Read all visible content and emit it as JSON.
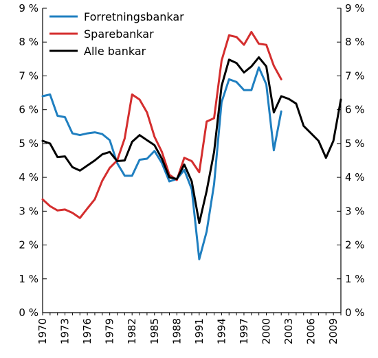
{
  "chart_data": {
    "type": "line",
    "title": "",
    "xlabel": "",
    "ylabel": "",
    "xlim": [
      1970,
      2010
    ],
    "ylim": [
      0,
      9
    ],
    "x_ticks": [
      1970,
      1973,
      1976,
      1979,
      1982,
      1985,
      1988,
      1991,
      1994,
      1997,
      2000,
      2003,
      2006,
      2009
    ],
    "x_tick_labels": [
      "1970",
      "1973",
      "1976",
      "1979",
      "1982",
      "1985",
      "1988",
      "1991",
      "1994",
      "1997",
      "2000",
      "2003",
      "2006",
      "2009"
    ],
    "y_ticks": [
      0,
      1,
      2,
      3,
      4,
      5,
      6,
      7,
      8,
      9
    ],
    "y_tick_labels": [
      "0 %",
      "1 %",
      "2 %",
      "3 %",
      "4 %",
      "5 %",
      "6 %",
      "7 %",
      "8 %",
      "9 %"
    ],
    "grid": false,
    "legend_position": "top-left",
    "series": [
      {
        "name": "Forretningsbankar",
        "color": "#1f7fc0",
        "x": [
          1970,
          1971,
          1972,
          1973,
          1974,
          1975,
          1976,
          1977,
          1978,
          1979,
          1980,
          1981,
          1982,
          1983,
          1984,
          1985,
          1986,
          1987,
          1988,
          1989,
          1990,
          1991,
          1992,
          1993,
          1994,
          1995,
          1996,
          1997,
          1998,
          1999,
          2000,
          2001,
          2002
        ],
        "values": [
          6.4,
          6.45,
          5.82,
          5.78,
          5.3,
          5.25,
          5.3,
          5.33,
          5.28,
          5.1,
          4.42,
          4.05,
          4.05,
          4.52,
          4.55,
          4.78,
          4.42,
          3.88,
          3.95,
          4.22,
          3.65,
          1.58,
          2.4,
          3.8,
          6.22,
          6.9,
          6.82,
          6.58,
          6.58,
          7.25,
          6.75,
          4.8,
          5.95
        ]
      },
      {
        "name": "Sparebankar",
        "color": "#d42e2e",
        "x": [
          1970,
          1971,
          1972,
          1973,
          1974,
          1975,
          1976,
          1977,
          1978,
          1979,
          1980,
          1981,
          1982,
          1983,
          1984,
          1985,
          1986,
          1987,
          1988,
          1989,
          1990,
          1991,
          1992,
          1993,
          1994,
          1995,
          1996,
          1997,
          1998,
          1999,
          2000,
          2001,
          2002
        ],
        "values": [
          3.35,
          3.15,
          3.02,
          3.05,
          2.95,
          2.8,
          3.08,
          3.35,
          3.9,
          4.28,
          4.5,
          5.15,
          6.45,
          6.3,
          5.92,
          5.2,
          4.75,
          4.08,
          3.92,
          4.58,
          4.48,
          4.15,
          5.65,
          5.75,
          7.45,
          8.2,
          8.15,
          7.92,
          8.3,
          7.95,
          7.92,
          7.3,
          6.9
        ]
      },
      {
        "name": "Alle bankar",
        "color": "#000000",
        "x": [
          1970,
          1971,
          1972,
          1973,
          1974,
          1975,
          1976,
          1977,
          1978,
          1979,
          1980,
          1981,
          1982,
          1983,
          1984,
          1985,
          1986,
          1987,
          1988,
          1989,
          1990,
          1991,
          1992,
          1993,
          1994,
          1995,
          1996,
          1997,
          1998,
          1999,
          2000,
          2001,
          2002,
          2003,
          2004,
          2005,
          2006,
          2007,
          2008,
          2009,
          2010
        ],
        "values": [
          5.08,
          5.0,
          4.6,
          4.62,
          4.3,
          4.2,
          4.35,
          4.5,
          4.68,
          4.75,
          4.48,
          4.5,
          5.05,
          5.25,
          5.1,
          4.95,
          4.55,
          4.0,
          3.95,
          4.38,
          3.88,
          2.65,
          3.6,
          4.75,
          6.7,
          7.48,
          7.38,
          7.1,
          7.28,
          7.55,
          7.28,
          5.92,
          6.4,
          6.32,
          6.18,
          5.52,
          5.3,
          5.08,
          4.58,
          5.08,
          6.3
        ]
      }
    ]
  }
}
